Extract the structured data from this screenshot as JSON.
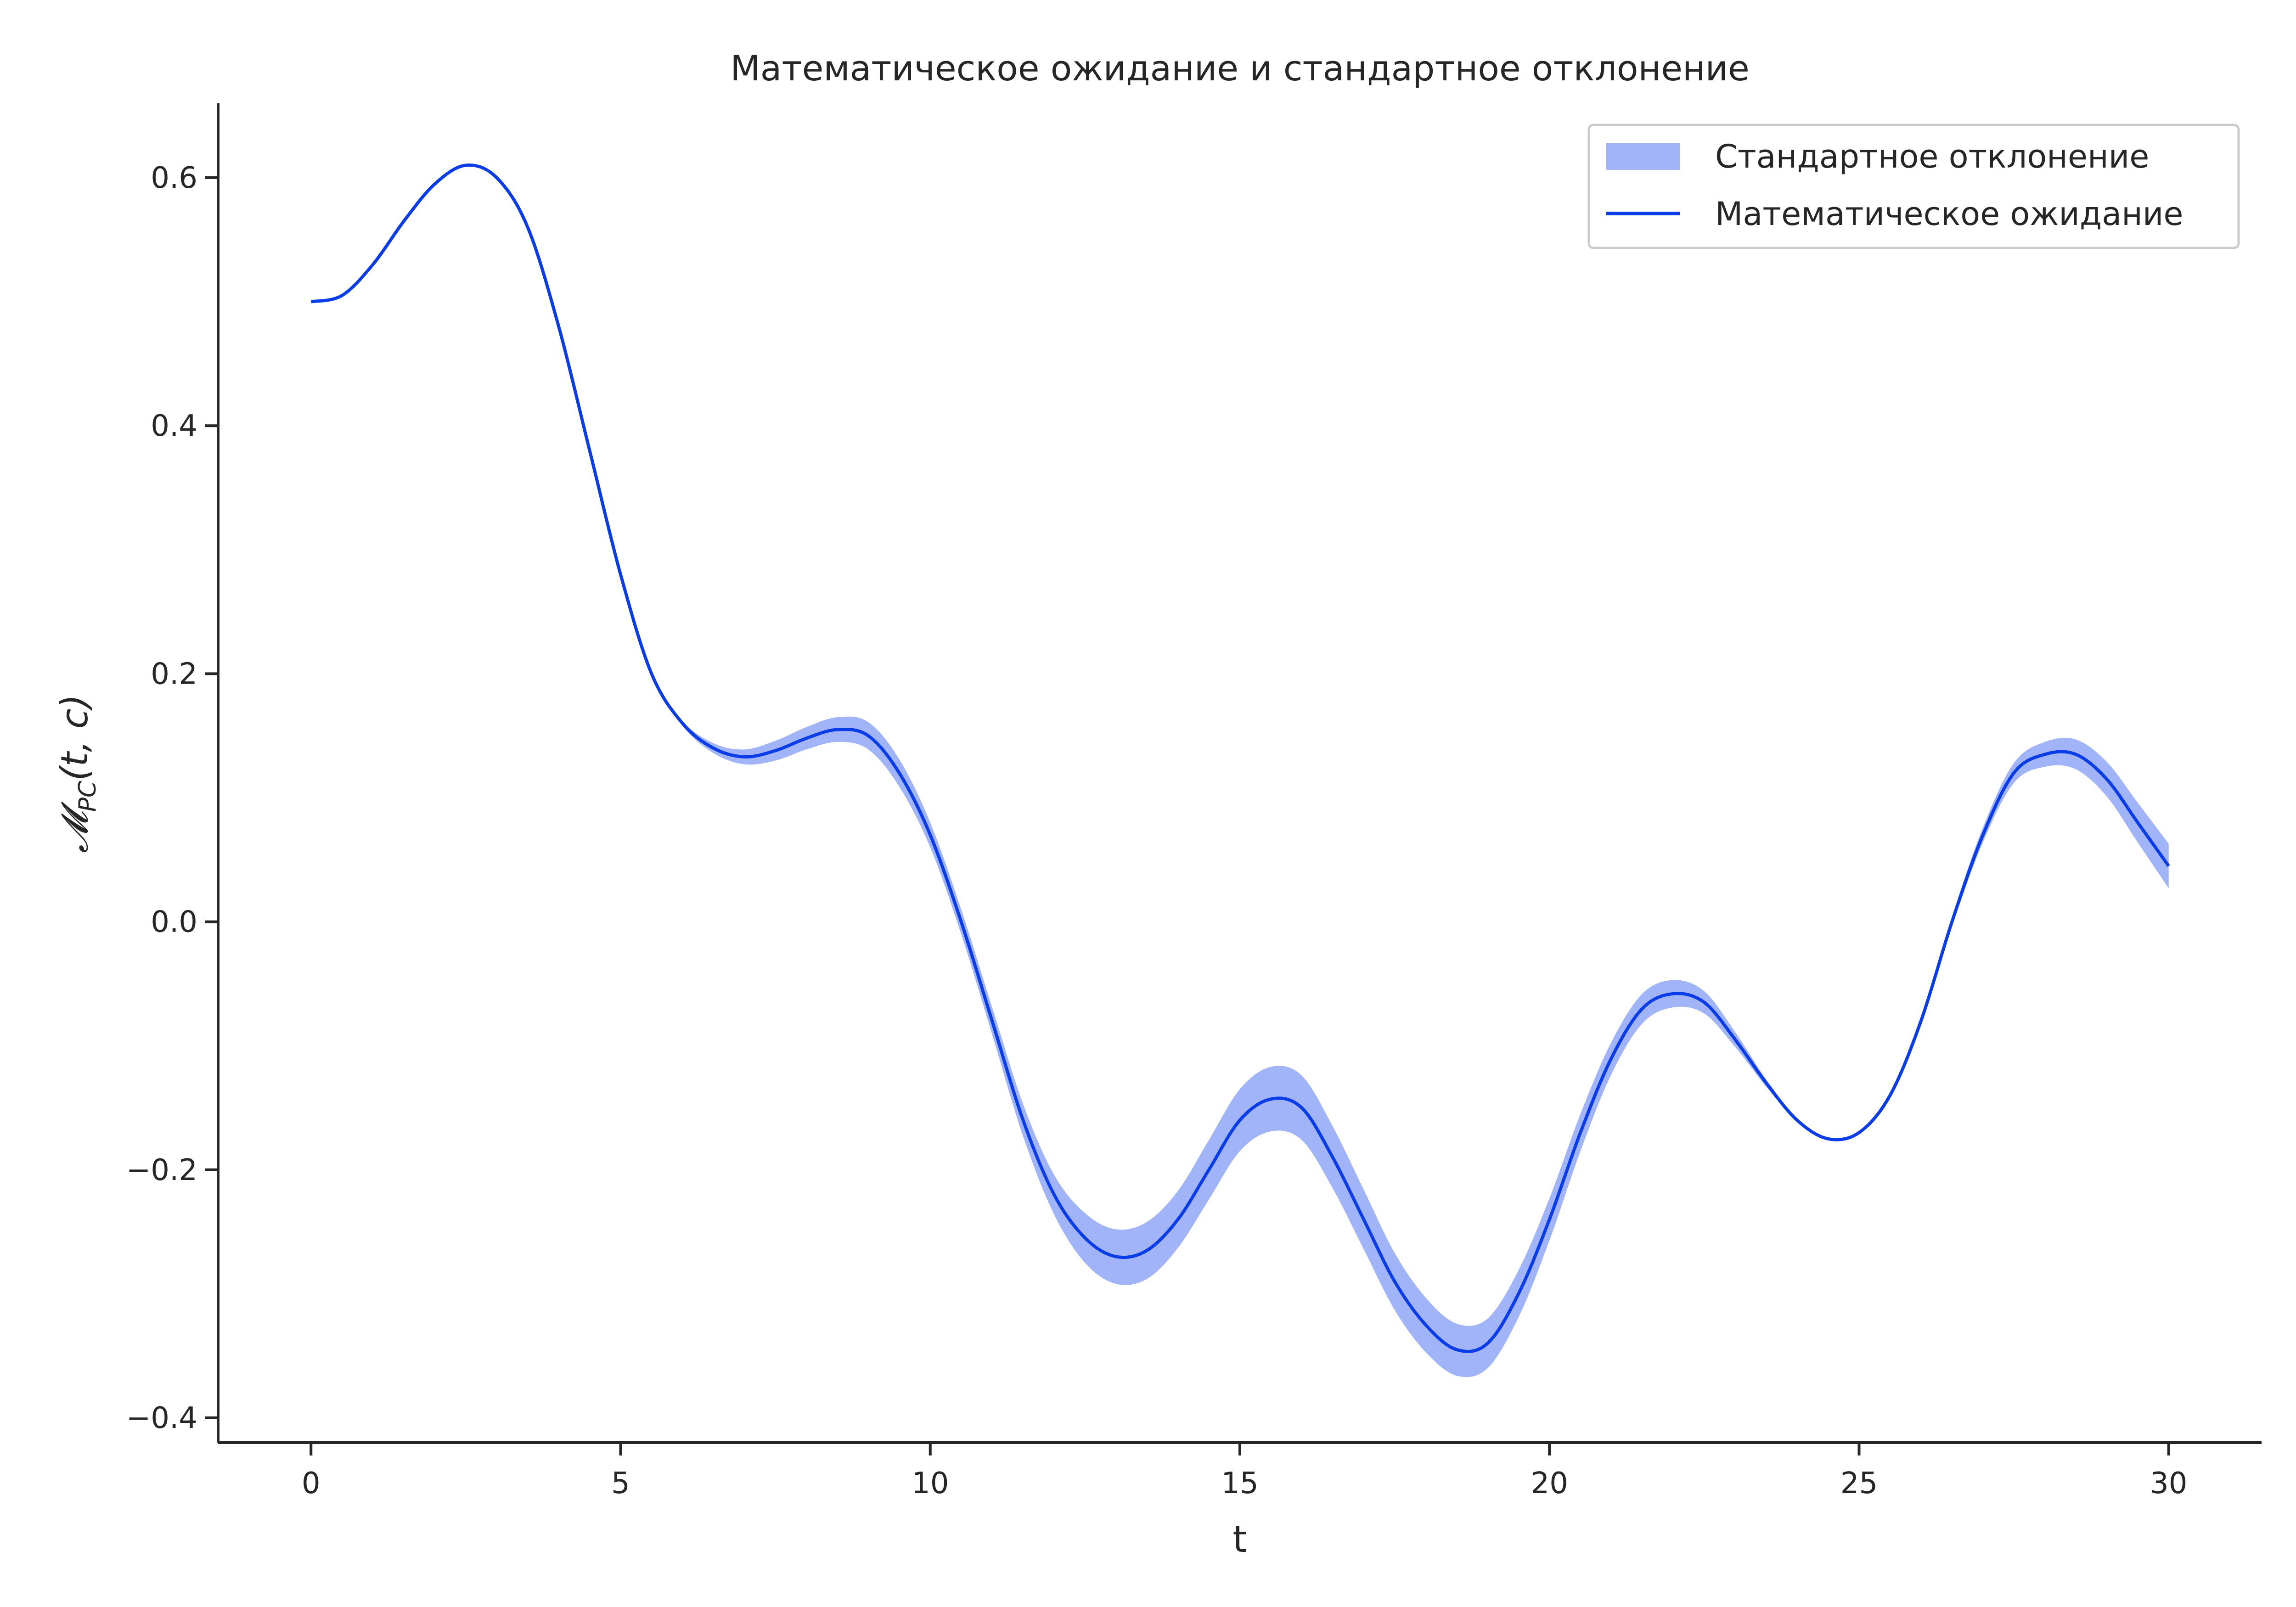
{
  "chart_data": {
    "type": "line",
    "title": "Математическое ожидание и стандартное отклонение",
    "xlabel": "t",
    "ylabel": "𝓜_PC(t, c)",
    "ylabel_parts": {
      "main": "𝓜",
      "sub": "PC",
      "rest": "(t, c)"
    },
    "xlim": [
      -1.5,
      31.5
    ],
    "ylim": [
      -0.42,
      0.66
    ],
    "xticks": [
      0,
      5,
      10,
      15,
      20,
      25,
      30
    ],
    "yticks": [
      -0.4,
      -0.2,
      0.0,
      0.2,
      0.4,
      0.6
    ],
    "ytick_labels": [
      "−0.4",
      "−0.2",
      "0.0",
      "0.2",
      "0.4",
      "0.6"
    ],
    "grid": false,
    "legend_position": "top-right",
    "colors": {
      "line": "#0a3de8",
      "band": "#a0b4f7"
    },
    "series": [
      {
        "name": "Математическое ожидание",
        "kind": "line",
        "x": [
          0,
          0.5,
          1,
          1.5,
          2,
          2.5,
          3,
          3.5,
          4,
          4.5,
          5,
          5.5,
          6,
          6.5,
          7,
          7.5,
          8,
          8.5,
          9,
          9.5,
          10,
          10.5,
          11,
          11.5,
          12,
          12.5,
          13,
          13.5,
          14,
          14.5,
          15,
          15.5,
          16,
          16.5,
          17,
          17.5,
          18,
          18.5,
          19,
          19.5,
          20,
          20.5,
          21,
          21.5,
          22,
          22.5,
          23,
          23.5,
          24,
          24.5,
          25,
          25.5,
          26,
          26.5,
          27,
          27.5,
          28,
          28.5,
          29,
          29.5,
          30
        ],
        "y": [
          0.5,
          0.505,
          0.53,
          0.565,
          0.595,
          0.61,
          0.6,
          0.56,
          0.48,
          0.38,
          0.28,
          0.2,
          0.16,
          0.14,
          0.133,
          0.138,
          0.148,
          0.155,
          0.15,
          0.12,
          0.07,
          0.0,
          -0.08,
          -0.16,
          -0.22,
          -0.255,
          -0.27,
          -0.265,
          -0.24,
          -0.2,
          -0.16,
          -0.143,
          -0.15,
          -0.19,
          -0.24,
          -0.29,
          -0.325,
          -0.345,
          -0.34,
          -0.3,
          -0.24,
          -0.17,
          -0.11,
          -0.07,
          -0.058,
          -0.065,
          -0.095,
          -0.13,
          -0.16,
          -0.175,
          -0.17,
          -0.14,
          -0.08,
          0.0,
          0.07,
          0.12,
          0.135,
          0.135,
          0.115,
          0.08,
          0.045
        ]
      },
      {
        "name": "Стандартное отклонение",
        "kind": "band",
        "half_width": [
          0,
          0,
          0,
          0,
          0,
          0,
          0,
          0,
          0,
          0,
          0,
          0,
          0.002,
          0.004,
          0.006,
          0.008,
          0.009,
          0.01,
          0.011,
          0.011,
          0.01,
          0.01,
          0.011,
          0.013,
          0.016,
          0.02,
          0.022,
          0.023,
          0.023,
          0.024,
          0.025,
          0.026,
          0.026,
          0.025,
          0.024,
          0.023,
          0.022,
          0.021,
          0.02,
          0.019,
          0.017,
          0.015,
          0.013,
          0.012,
          0.011,
          0.009,
          0.006,
          0.003,
          0.001,
          0,
          0,
          0,
          0.002,
          0.004,
          0.006,
          0.008,
          0.01,
          0.012,
          0.014,
          0.016,
          0.018
        ]
      }
    ]
  }
}
